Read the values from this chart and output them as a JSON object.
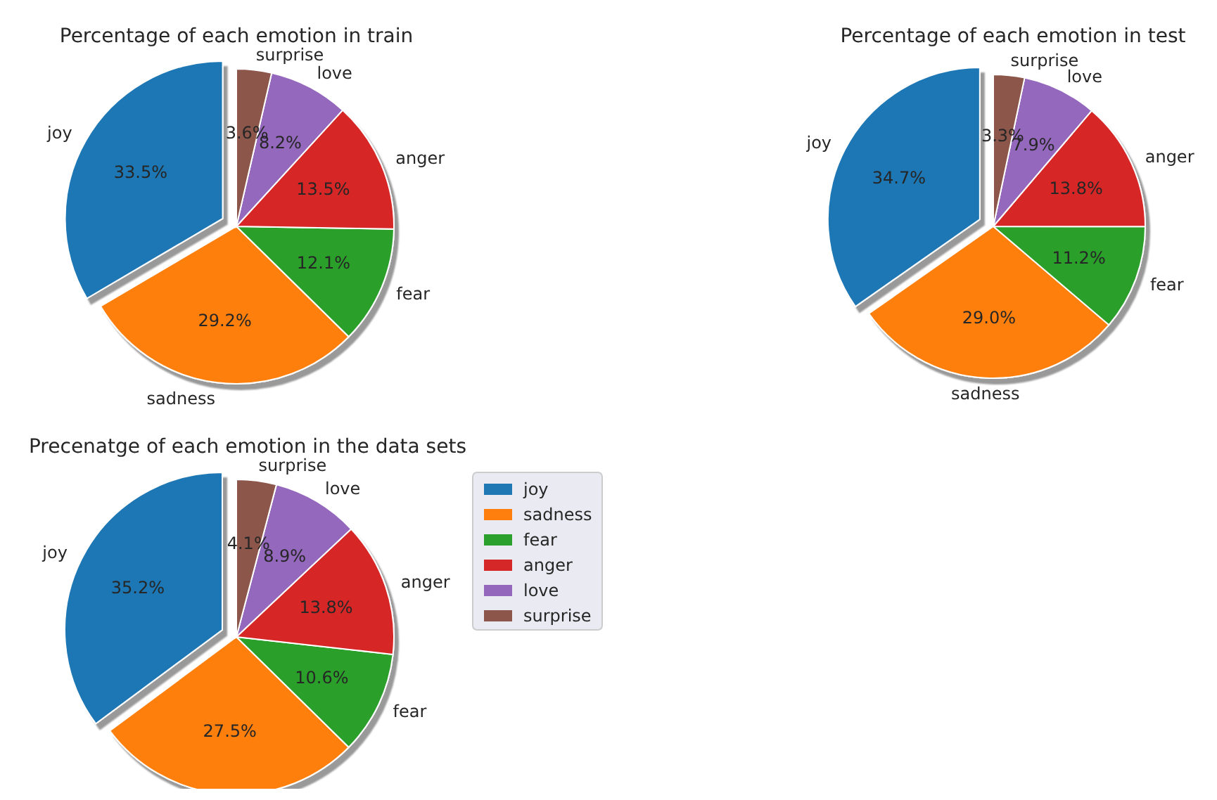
{
  "chart_data": [
    {
      "type": "pie",
      "title": "Percentage of each emotion in train",
      "categories": [
        "joy",
        "sadness",
        "fear",
        "anger",
        "love",
        "surprise"
      ],
      "values": [
        33.5,
        29.2,
        12.1,
        13.5,
        8.2,
        3.6
      ],
      "value_labels": [
        "33.5%",
        "29.2%",
        "12.1%",
        "13.5%",
        "8.2%",
        "3.6%"
      ],
      "colors": [
        "#1f77b4",
        "#ff7f0e",
        "#2ca02c",
        "#d62728",
        "#9467bd",
        "#8c564b"
      ]
    },
    {
      "type": "pie",
      "title": "Percentage of each emotion in test",
      "categories": [
        "joy",
        "sadness",
        "fear",
        "anger",
        "love",
        "surprise"
      ],
      "values": [
        34.7,
        29.0,
        11.2,
        13.8,
        7.9,
        3.3
      ],
      "value_labels": [
        "34.7%",
        "29.0%",
        "11.2%",
        "13.8%",
        "7.9%",
        "3.3%"
      ],
      "colors": [
        "#1f77b4",
        "#ff7f0e",
        "#2ca02c",
        "#d62728",
        "#9467bd",
        "#8c564b"
      ]
    },
    {
      "type": "pie",
      "title": "Precenatge of each emotion in the data sets",
      "categories": [
        "joy",
        "sadness",
        "fear",
        "anger",
        "love",
        "surprise"
      ],
      "values": [
        35.2,
        27.5,
        10.6,
        13.8,
        8.9,
        4.1
      ],
      "value_labels": [
        "35.2%",
        "27.5%",
        "10.6%",
        "13.8%",
        "8.9%",
        "4.1%"
      ],
      "colors": [
        "#1f77b4",
        "#ff7f0e",
        "#2ca02c",
        "#d62728",
        "#9467bd",
        "#8c564b"
      ],
      "legend": "top right"
    }
  ]
}
